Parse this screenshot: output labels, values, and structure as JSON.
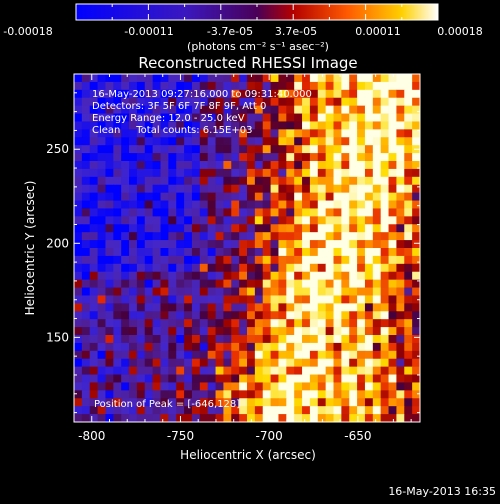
{
  "colorbar": {
    "tick_labels": [
      "-0.00018",
      "-0.00011",
      "-3.7e-05",
      "3.7e-05",
      "0.00011",
      "0.00018"
    ],
    "unit_label": "(photons cm⁻² s⁻¹ asec⁻²)",
    "range": [
      -0.00018,
      0.00018
    ]
  },
  "chart_data": {
    "type": "heatmap",
    "title": "Reconstructed RHESSI Image",
    "xlabel": "Heliocentric X (arcsec)",
    "ylabel": "Heliocentric Y (arcsec)",
    "xlim": [
      -810,
      -615
    ],
    "ylim": [
      105,
      290
    ],
    "x_ticks": [
      -800,
      -750,
      -700,
      -650
    ],
    "y_ticks": [
      150,
      200,
      250
    ],
    "annotations": [
      "16-May-2013 09:27:16.000 to 09:31:40.000",
      "Detectors: 3F 5F 6F 7F 8F 9F, Att 0",
      "Energy Range: 12.0 - 25.0 keV",
      "Clean     Total counts: 6.15E+03"
    ],
    "peak_label": "Position of Peak = [-646,128]",
    "peak": [
      -646,
      128
    ],
    "grid": false
  },
  "footer": {
    "timestamp": "16-May-2013 16:35"
  }
}
